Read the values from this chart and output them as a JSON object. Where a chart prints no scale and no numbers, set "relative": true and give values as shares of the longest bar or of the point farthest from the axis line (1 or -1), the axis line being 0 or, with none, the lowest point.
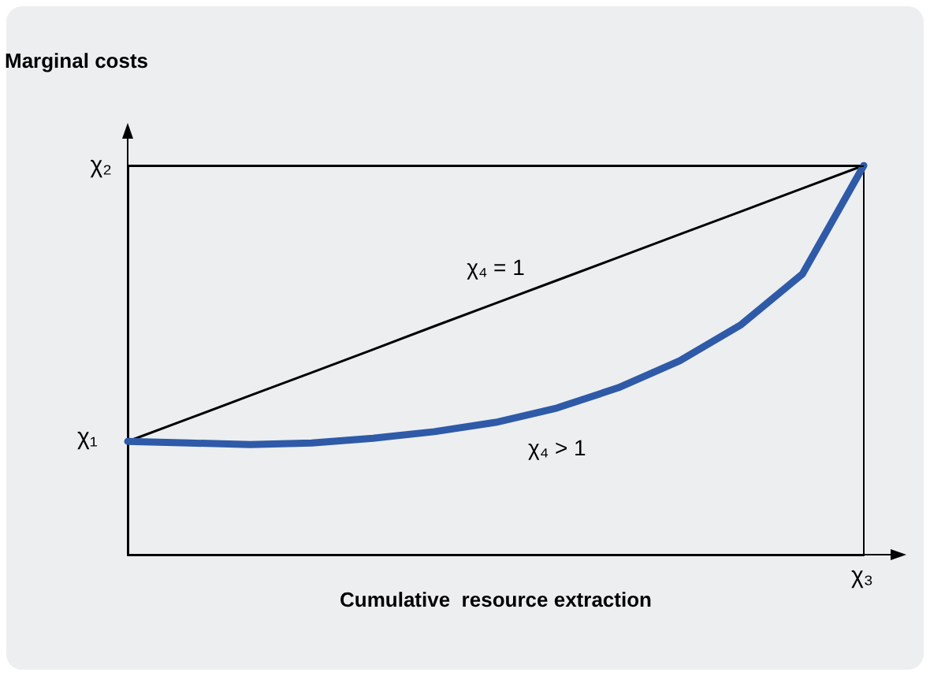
{
  "chart_data": {
    "type": "line",
    "relative": true,
    "xlabel": "Cumulative  resource extraction",
    "ylabel": "Marginal costs",
    "categories": [
      null,
      null,
      null,
      null,
      null,
      null,
      null,
      null,
      null,
      null,
      null,
      null,
      null
    ],
    "series": [
      {
        "name": "χ₄ = 1",
        "color": "#000000",
        "values": [
          0.291,
          0.35,
          0.409,
          0.468,
          0.527,
          0.587,
          0.646,
          0.705,
          0.764,
          0.823,
          0.882,
          0.941,
          1.0
        ]
      },
      {
        "name": "χ₄ > 1",
        "color": "#2e5aa8",
        "values": [
          0.291,
          0.287,
          0.283,
          0.287,
          0.299,
          0.316,
          0.34,
          0.377,
          0.429,
          0.498,
          0.591,
          0.721,
          1.0
        ]
      }
    ],
    "ref_lines": [
      {
        "axis": "y",
        "value": 1,
        "label": "χ₂",
        "color": "#000000",
        "line_style": "solid"
      }
    ],
    "annotations": [
      "χ₁",
      "χ₃"
    ],
    "legend": false,
    "grid": false,
    "marker": "none",
    "line_style": "solid"
  }
}
